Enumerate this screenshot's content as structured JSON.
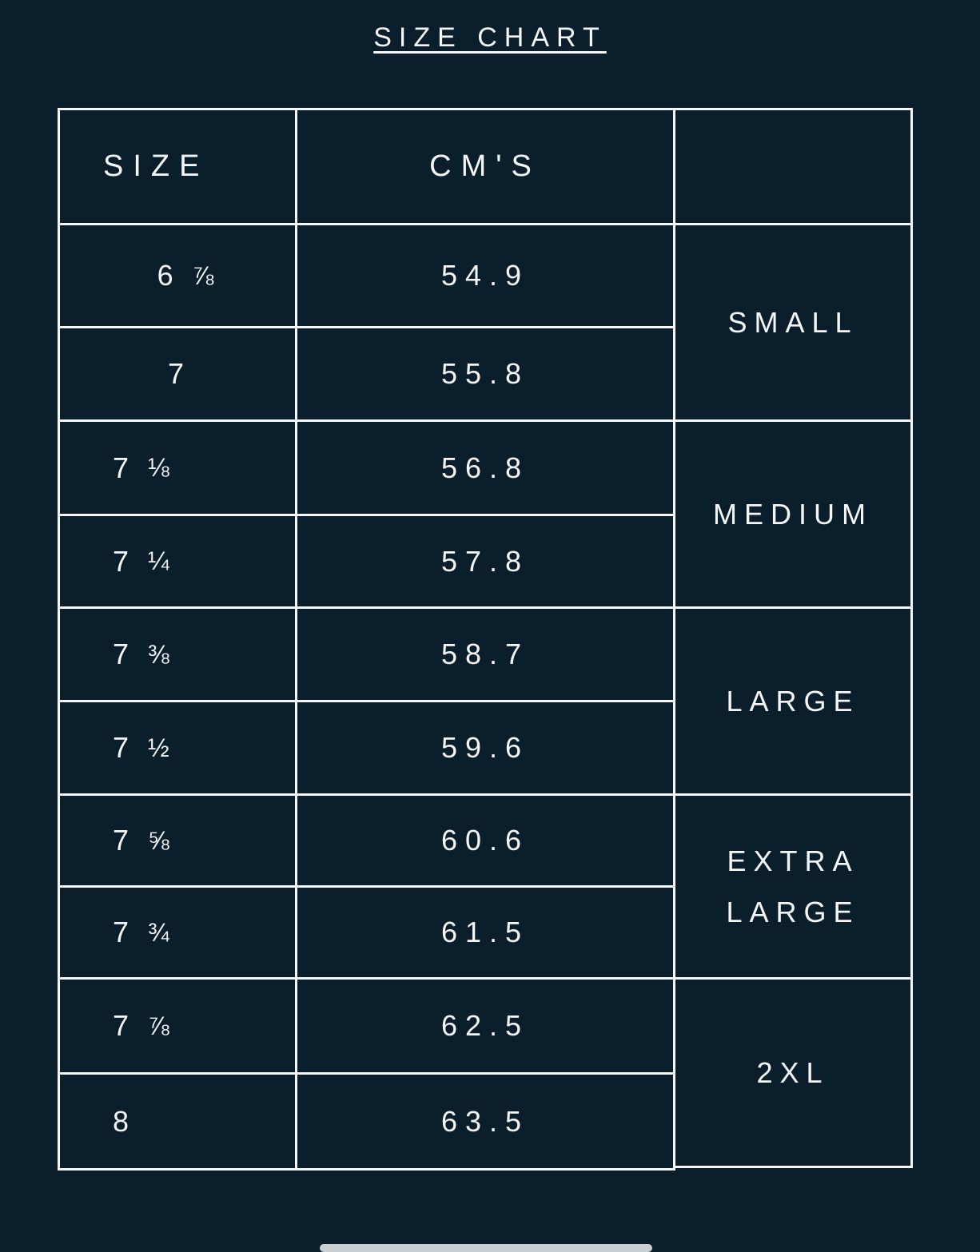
{
  "title": "SIZE CHART",
  "headers": [
    "SIZE",
    "CM'S",
    ""
  ],
  "rows": [
    {
      "whole": "6",
      "frac": "⅞",
      "cm": "54.9"
    },
    {
      "whole": "7",
      "frac": "",
      "cm": "55.8"
    },
    {
      "whole": "7",
      "frac": "⅛",
      "cm": "56.8"
    },
    {
      "whole": "7",
      "frac": "¼",
      "cm": "57.8"
    },
    {
      "whole": "7",
      "frac": "⅜",
      "cm": "58.7"
    },
    {
      "whole": "7",
      "frac": "½",
      "cm": "59.6"
    },
    {
      "whole": "7",
      "frac": "⅝",
      "cm": "60.6"
    },
    {
      "whole": "7",
      "frac": "¾",
      "cm": "61.5"
    },
    {
      "whole": "7",
      "frac": "⅞",
      "cm": "62.5"
    },
    {
      "whole": "8",
      "frac": "",
      "cm": "63.5"
    }
  ],
  "groups": [
    "SMALL",
    "MEDIUM",
    "LARGE",
    "EXTRA LARGE",
    "2XL"
  ],
  "colors": {
    "background": "#0b1e2c",
    "foreground": "#f4f6f8"
  }
}
